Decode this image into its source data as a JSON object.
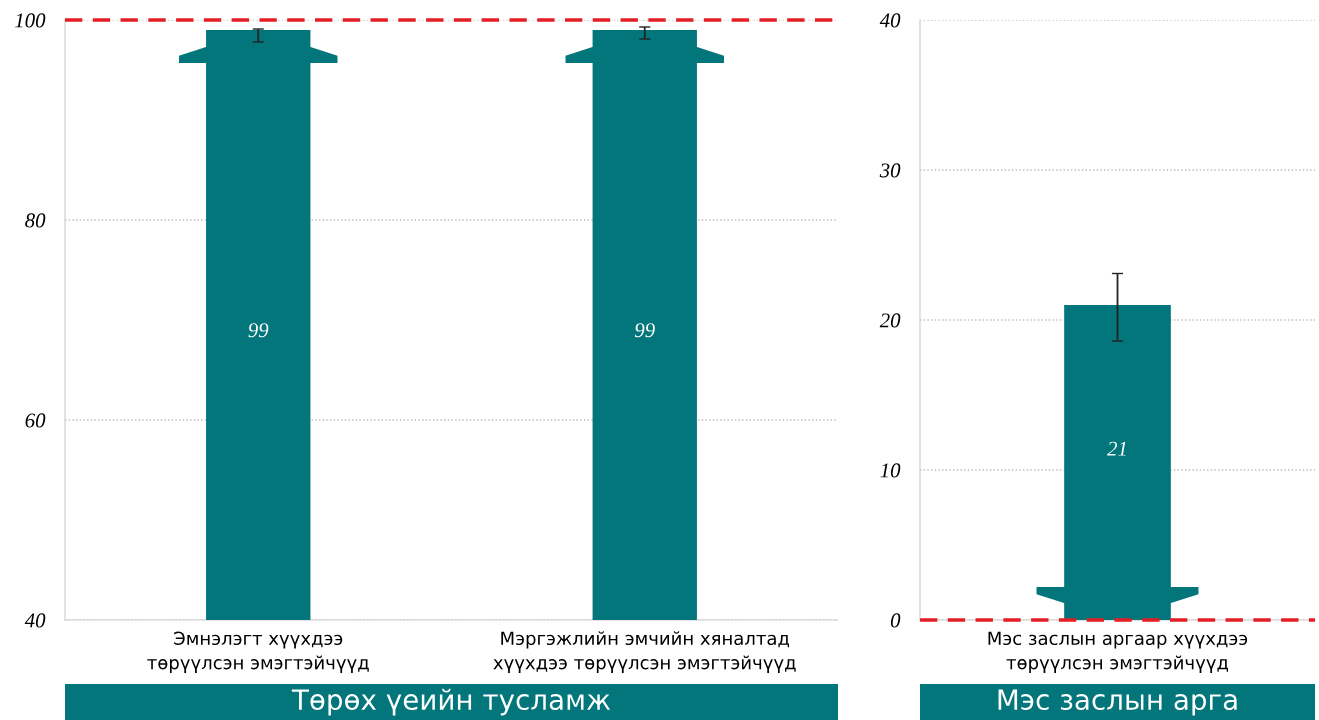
{
  "chart_data": [
    {
      "type": "bar",
      "categories": [
        "Эмнэлэгт хүүхдээ\nтөрүүлсэн эмэгтэйчүүд",
        "Мэргэжлийн эмчийн хяналтад\nхүүхдээ төрүүлсэн эмэгтэйчүүд"
      ],
      "values": [
        99,
        99
      ],
      "color": "#02767a",
      "errors": [
        [
          97.8,
          99.1
        ],
        [
          98.1,
          99.3
        ]
      ],
      "data_labels": true,
      "ylim": [
        40,
        100
      ],
      "yticks": [
        40,
        60,
        80,
        100
      ],
      "grid": "y",
      "ref_lines": [
        {
          "axis": "y",
          "value": 100,
          "color": "#e31e24",
          "line_style": "dashed"
        }
      ],
      "annotations": [
        "Төрөх үеийн тусламж"
      ]
    },
    {
      "type": "bar",
      "categories": [
        "Мэс заслын аргаар хүүхдээ\nтөрүүлсэн эмэгтэйчүүд"
      ],
      "values": [
        21
      ],
      "color": "#02767a",
      "errors": [
        [
          18.6,
          23.1
        ]
      ],
      "data_labels": true,
      "ylim": [
        0,
        40
      ],
      "yticks": [
        0,
        10,
        20,
        30,
        40
      ],
      "grid": "y",
      "ref_lines": [
        {
          "axis": "y",
          "value": 0,
          "color": "#e31e24",
          "line_style": "dashed"
        }
      ],
      "annotations": [
        "Мэс заслын арга"
      ]
    }
  ]
}
